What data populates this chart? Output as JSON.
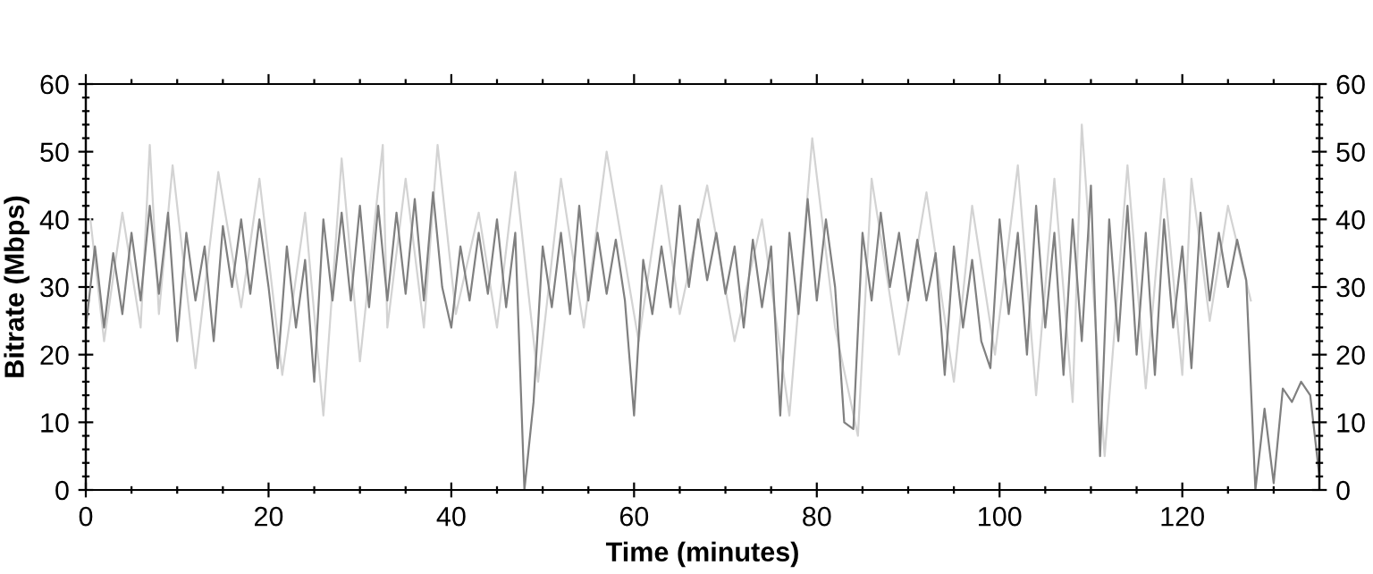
{
  "chart_data": {
    "type": "line",
    "xlabel": "Time (minutes)",
    "ylabel": "Bitrate (Mbps)",
    "xlim": [
      0,
      135
    ],
    "ylim": [
      0,
      60
    ],
    "y2lim": [
      0,
      60
    ],
    "xticks": [
      0,
      {
        "value": 5,
        "label": null
      },
      {
        "value": 10,
        "label": null
      },
      {
        "value": 15,
        "label": null
      },
      20,
      {
        "value": 25,
        "label": null
      },
      {
        "value": 30,
        "label": null
      },
      {
        "value": 35,
        "label": null
      },
      40,
      {
        "value": 45,
        "label": null
      },
      {
        "value": 50,
        "label": null
      },
      {
        "value": 55,
        "label": null
      },
      60,
      {
        "value": 65,
        "label": null
      },
      {
        "value": 70,
        "label": null
      },
      {
        "value": 75,
        "label": null
      },
      80,
      {
        "value": 85,
        "label": null
      },
      {
        "value": 90,
        "label": null
      },
      {
        "value": 95,
        "label": null
      },
      100,
      {
        "value": 105,
        "label": null
      },
      {
        "value": 110,
        "label": null
      },
      {
        "value": 115,
        "label": null
      },
      120,
      {
        "value": 125,
        "label": null
      },
      {
        "value": 130,
        "label": null
      }
    ],
    "yticks": [
      0,
      {
        "value": 2,
        "label": null
      },
      {
        "value": 4,
        "label": null
      },
      {
        "value": 6,
        "label": null
      },
      {
        "value": 8,
        "label": null
      },
      10,
      {
        "value": 12,
        "label": null
      },
      {
        "value": 14,
        "label": null
      },
      {
        "value": 16,
        "label": null
      },
      {
        "value": 18,
        "label": null
      },
      20,
      {
        "value": 22,
        "label": null
      },
      {
        "value": 24,
        "label": null
      },
      {
        "value": 26,
        "label": null
      },
      {
        "value": 28,
        "label": null
      },
      30,
      {
        "value": 32,
        "label": null
      },
      {
        "value": 34,
        "label": null
      },
      {
        "value": 36,
        "label": null
      },
      {
        "value": 38,
        "label": null
      },
      40,
      {
        "value": 42,
        "label": null
      },
      {
        "value": 44,
        "label": null
      },
      {
        "value": 46,
        "label": null
      },
      {
        "value": 48,
        "label": null
      },
      50,
      {
        "value": 52,
        "label": null
      },
      {
        "value": 54,
        "label": null
      },
      {
        "value": 56,
        "label": null
      },
      {
        "value": 58,
        "label": null
      },
      60
    ],
    "y2ticks": [
      0,
      {
        "value": 2,
        "label": null
      },
      {
        "value": 4,
        "label": null
      },
      {
        "value": 6,
        "label": null
      },
      {
        "value": 8,
        "label": null
      },
      10,
      {
        "value": 12,
        "label": null
      },
      {
        "value": 14,
        "label": null
      },
      {
        "value": 16,
        "label": null
      },
      {
        "value": 18,
        "label": null
      },
      20,
      {
        "value": 22,
        "label": null
      },
      {
        "value": 24,
        "label": null
      },
      {
        "value": 26,
        "label": null
      },
      {
        "value": 28,
        "label": null
      },
      30,
      {
        "value": 32,
        "label": null
      },
      {
        "value": 34,
        "label": null
      },
      {
        "value": 36,
        "label": null
      },
      {
        "value": 38,
        "label": null
      },
      40,
      {
        "value": 42,
        "label": null
      },
      {
        "value": 44,
        "label": null
      },
      {
        "value": 46,
        "label": null
      },
      {
        "value": 48,
        "label": null
      },
      50,
      {
        "value": 52,
        "label": null
      },
      {
        "value": 54,
        "label": null
      },
      {
        "value": 56,
        "label": null
      },
      {
        "value": 58,
        "label": null
      },
      60
    ],
    "grid": false,
    "legend": false,
    "marker": "none",
    "line_style": "solid",
    "series": [
      {
        "color": "#d3d3d3",
        "x": [
          0.5,
          2,
          4,
          6,
          7,
          8,
          9.5,
          12,
          14.5,
          17,
          19,
          21.5,
          24,
          26,
          28,
          30,
          32.5,
          33,
          35,
          37,
          38.5,
          40.5,
          43,
          45,
          47,
          49.5,
          52,
          54.5,
          57,
          60.5,
          63,
          65,
          68,
          71,
          74,
          77,
          79.5,
          82,
          84.5,
          86,
          89,
          92,
          95,
          97,
          99.5,
          102,
          104,
          106,
          108,
          109,
          111.5,
          114,
          116,
          118,
          120,
          121,
          123,
          125,
          127.5
        ],
        "values": [
          40,
          22,
          41,
          24,
          51,
          26,
          48,
          18,
          47,
          27,
          46,
          17,
          41,
          11,
          49,
          19,
          51,
          24,
          46,
          24,
          51,
          26,
          41,
          24,
          47,
          16,
          46,
          24,
          50,
          22,
          45,
          26,
          45,
          22,
          40,
          11,
          52,
          24,
          8,
          46,
          20,
          44,
          16,
          42,
          20,
          48,
          14,
          46,
          13,
          54,
          5,
          48,
          15,
          46,
          17,
          46,
          25,
          42,
          28
        ]
      },
      {
        "color": "#808080",
        "x": [
          0,
          1,
          2,
          3,
          4,
          5,
          6,
          7,
          8,
          9,
          10,
          11,
          12,
          13,
          14,
          15,
          16,
          17,
          18,
          19,
          20,
          21,
          22,
          23,
          24,
          25,
          26,
          27,
          28,
          29,
          30,
          31,
          32,
          33,
          34,
          35,
          36,
          37,
          38,
          39,
          40,
          41,
          42,
          43,
          44,
          45,
          46,
          47,
          48,
          49,
          50,
          51,
          52,
          53,
          54,
          55,
          56,
          57,
          58,
          59,
          60,
          61,
          62,
          63,
          64,
          65,
          66,
          67,
          68,
          69,
          70,
          71,
          72,
          73,
          74,
          75,
          76,
          77,
          78,
          79,
          80,
          81,
          82,
          83,
          84,
          85,
          86,
          87,
          88,
          89,
          90,
          91,
          92,
          93,
          94,
          95,
          96,
          97,
          98,
          99,
          100,
          101,
          102,
          103,
          104,
          105,
          106,
          107,
          108,
          109,
          110,
          111,
          112,
          113,
          114,
          115,
          116,
          117,
          118,
          119,
          120,
          121,
          122,
          123,
          124,
          125,
          126,
          127,
          128,
          129,
          130,
          131,
          132,
          133,
          134,
          135
        ],
        "values": [
          24,
          36,
          24,
          35,
          26,
          38,
          28,
          42,
          29,
          41,
          22,
          38,
          28,
          36,
          22,
          39,
          30,
          40,
          29,
          40,
          30,
          18,
          36,
          24,
          34,
          16,
          40,
          28,
          41,
          28,
          42,
          27,
          42,
          28,
          41,
          29,
          43,
          28,
          44,
          30,
          24,
          36,
          28,
          38,
          29,
          40,
          27,
          38,
          0,
          13,
          36,
          27,
          38,
          26,
          42,
          28,
          38,
          29,
          37,
          28,
          11,
          34,
          26,
          36,
          27,
          42,
          30,
          40,
          31,
          38,
          29,
          36,
          24,
          37,
          27,
          36,
          11,
          38,
          26,
          43,
          28,
          40,
          30,
          10,
          9,
          38,
          28,
          41,
          30,
          38,
          28,
          37,
          28,
          35,
          17,
          36,
          24,
          34,
          22,
          18,
          40,
          26,
          38,
          20,
          42,
          24,
          38,
          17,
          40,
          22,
          45,
          5,
          40,
          22,
          42,
          20,
          38,
          17,
          40,
          24,
          36,
          18,
          41,
          28,
          38,
          30,
          37,
          31,
          0,
          12,
          1,
          15,
          13,
          16,
          14,
          2
        ]
      }
    ]
  }
}
